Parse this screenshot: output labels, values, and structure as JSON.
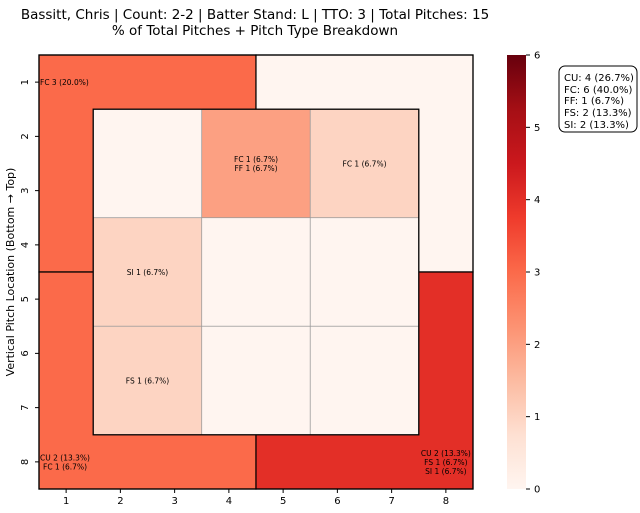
{
  "chart_data": {
    "type": "heatmap",
    "title_line1": "Bassitt, Chris | Count: 2-2 | Batter Stand: L | TTO: 3 | Total Pitches: 15",
    "title_line2": "% of Total Pitches + Pitch Type Breakdown",
    "ylabel": "Vertical Pitch Location (Bottom → Top)",
    "xlabel": "",
    "x_ticks": [
      "1",
      "2",
      "3",
      "4",
      "5",
      "6",
      "7",
      "8"
    ],
    "y_ticks": [
      "1",
      "2",
      "3",
      "4",
      "5",
      "6",
      "7",
      "8"
    ],
    "colorbar": {
      "min": 0,
      "max": 6,
      "ticks": [
        "0",
        "1",
        "2",
        "3",
        "4",
        "5",
        "6"
      ],
      "colormap": "Reds"
    },
    "zones": [
      {
        "zone": "outer-top-left",
        "count": 3,
        "labels": [
          "FC 3 (20.0%)"
        ]
      },
      {
        "zone": "outer-top-right",
        "count": 0,
        "labels": []
      },
      {
        "zone": "outer-bottom-left",
        "count": 3,
        "labels": [
          "CU 2 (13.3%)",
          "FC 1 (6.7%)"
        ]
      },
      {
        "zone": "outer-bottom-right",
        "count": 4,
        "labels": [
          "CU 2 (13.3%)",
          "FS 1 (6.7%)",
          "SI 1 (6.7%)"
        ]
      },
      {
        "zone": "inner-r1-c1",
        "count": 0,
        "labels": []
      },
      {
        "zone": "inner-r1-c2",
        "count": 2,
        "labels": [
          "FC 1 (6.7%)",
          "FF 1 (6.7%)"
        ]
      },
      {
        "zone": "inner-r1-c3",
        "count": 1,
        "labels": [
          "FC 1 (6.7%)"
        ]
      },
      {
        "zone": "inner-r2-c1",
        "count": 1,
        "labels": [
          "SI 1 (6.7%)"
        ]
      },
      {
        "zone": "inner-r2-c2",
        "count": 0,
        "labels": []
      },
      {
        "zone": "inner-r2-c3",
        "count": 0,
        "labels": []
      },
      {
        "zone": "inner-r3-c1",
        "count": 1,
        "labels": [
          "FS 1 (6.7%)"
        ]
      },
      {
        "zone": "inner-r3-c2",
        "count": 0,
        "labels": []
      },
      {
        "zone": "inner-r3-c3",
        "count": 0,
        "labels": []
      }
    ],
    "legend": [
      "CU: 4 (26.7%)",
      "FC: 6 (40.0%)",
      "FF: 1 (6.7%)",
      "FS: 2 (13.3%)",
      "SI: 2 (13.3%)"
    ],
    "legend_position": "right"
  }
}
